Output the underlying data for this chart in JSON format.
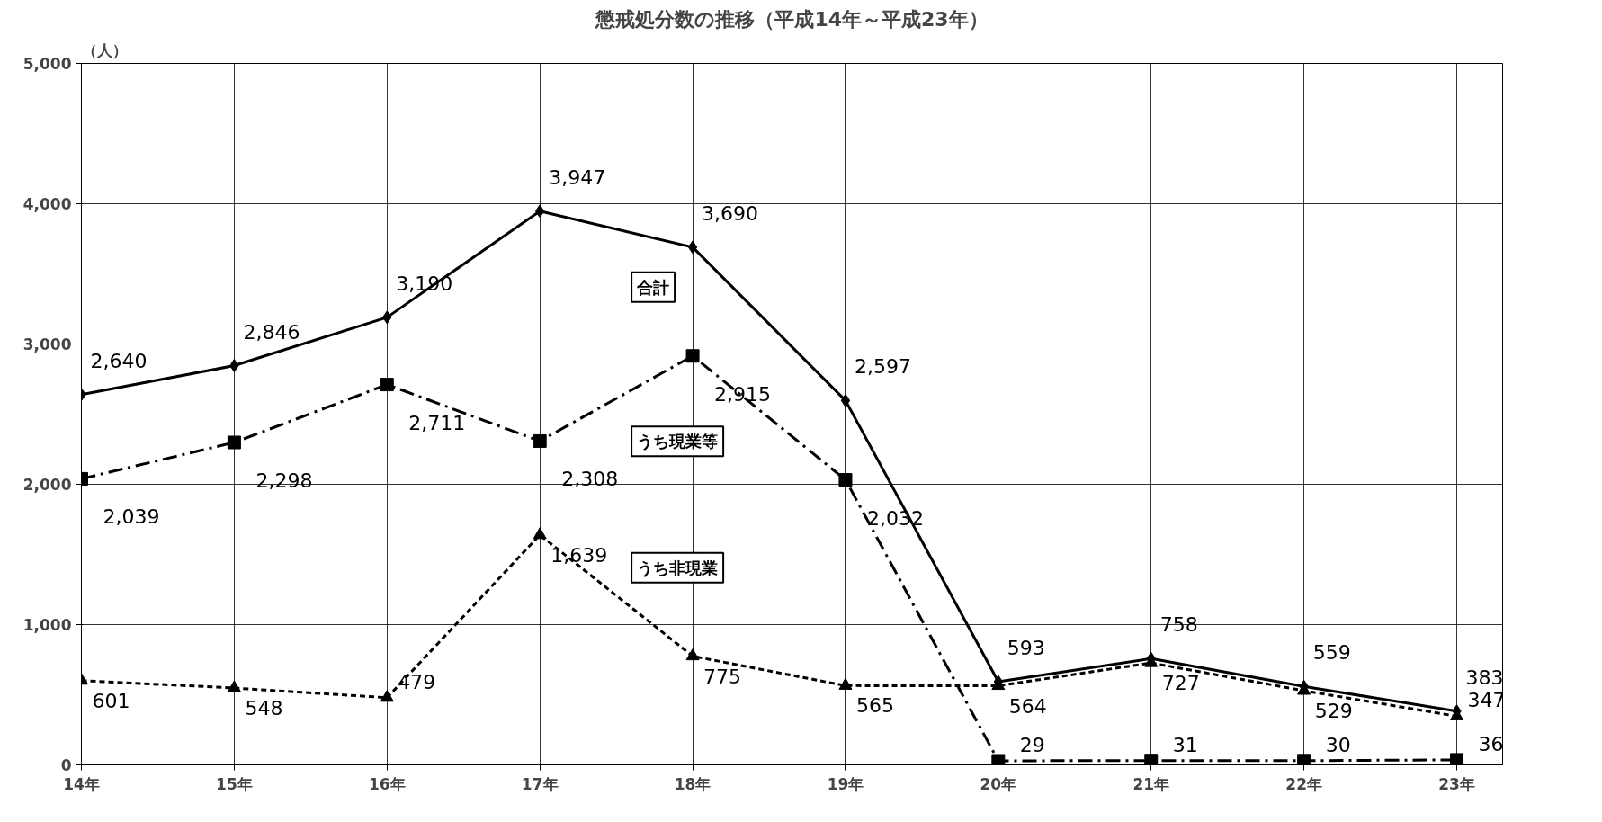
{
  "chart_data": {
    "type": "line",
    "title": "懲戒処分数の推移（平成14年～平成23年）",
    "ylabel": "（人）",
    "categories": [
      "14年",
      "15年",
      "16年",
      "17年",
      "18年",
      "19年",
      "20年",
      "21年",
      "22年",
      "23年"
    ],
    "series": [
      {
        "name": "合計",
        "color": "#000000",
        "marker": "diamond",
        "line_style": "solid",
        "values": [
          2640,
          2846,
          3190,
          3947,
          3690,
          2597,
          593,
          758,
          559,
          383
        ],
        "value_labels": [
          "2,640",
          "2,846",
          "3,190",
          "3,947",
          "3,690",
          "2,597",
          "593",
          "758",
          "559",
          "383"
        ]
      },
      {
        "name": "うち現業等",
        "color": "#000000",
        "marker": "square",
        "line_style": "dashdot",
        "values": [
          2039,
          2298,
          2711,
          2308,
          2915,
          2032,
          29,
          31,
          30,
          36
        ],
        "value_labels": [
          "2,039",
          "2,298",
          "2,711",
          "2,308",
          "2,915",
          "2,032",
          "29",
          "31",
          "30",
          "36"
        ]
      },
      {
        "name": "うち非現業",
        "color": "#000000",
        "marker": "triangle",
        "line_style": "dashed",
        "values": [
          601,
          548,
          479,
          1639,
          775,
          565,
          564,
          727,
          529,
          347
        ],
        "value_labels": [
          "601",
          "548",
          "479",
          "1,639",
          "775",
          "565",
          "564",
          "727",
          "529",
          "347"
        ]
      }
    ],
    "ylim": [
      0,
      5000
    ],
    "yticks": [
      {
        "value": 0,
        "label": "0"
      },
      {
        "value": 1000,
        "label": "1,000"
      },
      {
        "value": 2000,
        "label": "2,000"
      },
      {
        "value": 3000,
        "label": "3,000"
      },
      {
        "value": 4000,
        "label": "4,000"
      },
      {
        "value": 5000,
        "label": "5,000"
      }
    ],
    "grid": true,
    "legend": false
  }
}
